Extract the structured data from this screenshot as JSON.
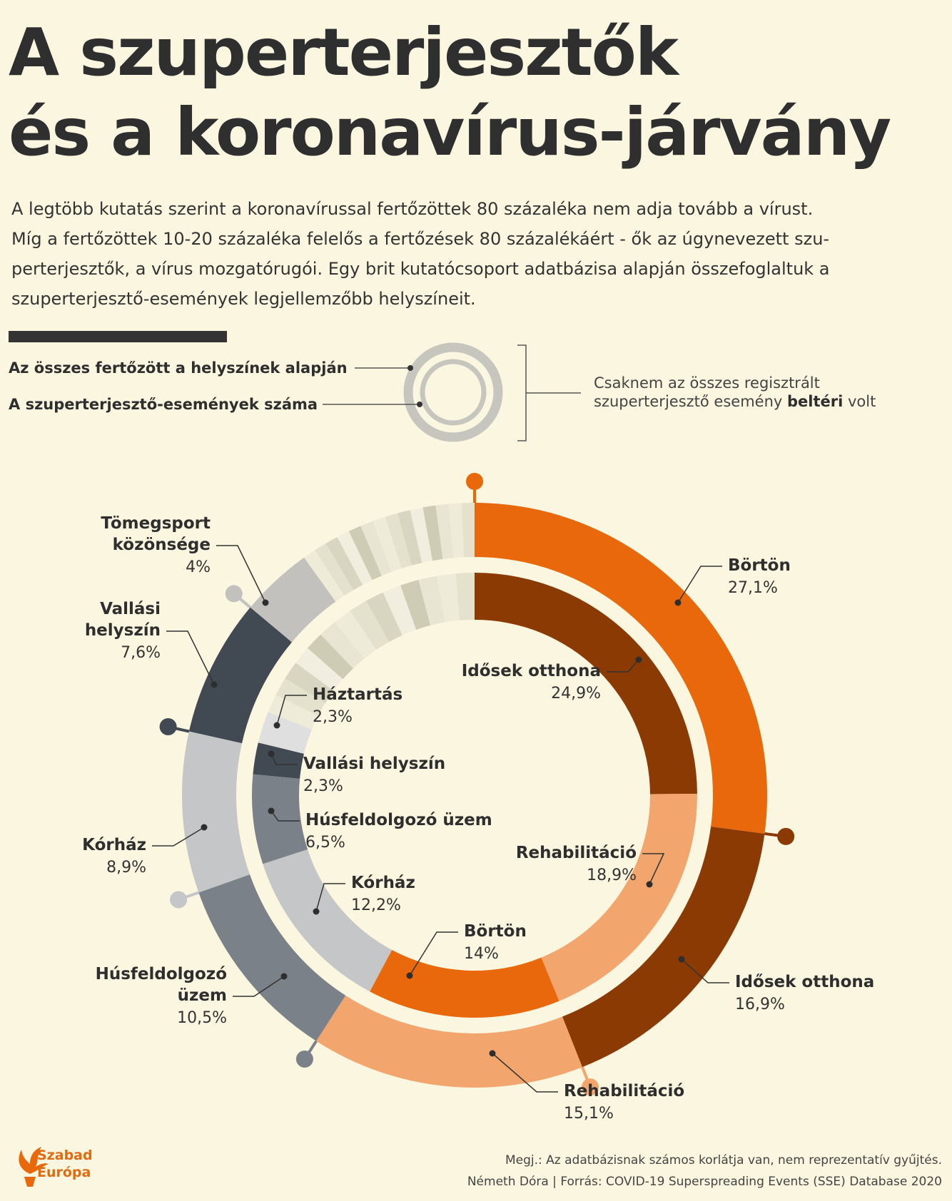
{
  "header": {
    "title_line1": "A szuperterjesztők",
    "title_line2": "és a koronavírus-járvány"
  },
  "intro": {
    "lines": [
      "A legtöbb kutatás szerint a koronavírussal fertőzöttek 80 százaléka nem adja tovább a vírust.",
      "Míg a fertőzöttek 10-20 százaléka felelős a fertőzések 80 százalékáért - ők az úgynevezett szu-",
      "perterjesztők, a vírus mozgatórugói. Egy brit kutatócsoport adatbázisa alapján összefoglaltuk a",
      "szuperterjesztő-események legjellemzőbb helyszíneit."
    ]
  },
  "legend": {
    "outer_label": "Az összes fertőzött a helyszínek alapján",
    "inner_label": "A szuperterjesztő-események száma",
    "note_line1": "Csaknem az összes regisztrált",
    "note_line2_prefix": "szuperterjesztő esemény ",
    "note_line2_bold": "beltéri",
    "note_line2_suffix": " volt"
  },
  "colors": {
    "background": "#fbf6df",
    "orange": "#e8680b",
    "dark_brown": "#8b3a04",
    "light_orange": "#f2a66e",
    "slate_dark": "#414952",
    "slate_mid": "#7a8189",
    "gray_light": "#c5c6c7",
    "gray_very_light": "#dfdfdf",
    "beige_stripes": [
      "#eeebd9",
      "#e4e1cc",
      "#d8d5c0",
      "#f1eee0",
      "#cfccb6",
      "#e8e5d2"
    ]
  },
  "chart_data": [
    {
      "type": "donut",
      "name": "Az összes fertőzött a helyszínek alapján",
      "ring": "outer",
      "segments": [
        {
          "label": "Börtön",
          "value": 27.1,
          "value_label": "27,1%",
          "color": "#e8680b"
        },
        {
          "label": "Idősek otthona",
          "value": 16.9,
          "value_label": "16,9%",
          "color": "#8b3a04"
        },
        {
          "label": "Rehabilitáció",
          "value": 15.1,
          "value_label": "15,1%",
          "color": "#f2a66e"
        },
        {
          "label": "Húsfeldolgozó üzem",
          "value": 10.5,
          "value_label": "10,5%",
          "color": "#7a8189"
        },
        {
          "label": "Kórház",
          "value": 8.9,
          "value_label": "8,9%",
          "color": "#c5c6c7"
        },
        {
          "label": "Vallási helyszín",
          "value": 7.6,
          "value_label": "7,6%",
          "color": "#414952"
        },
        {
          "label": "Tömegsport közönsége",
          "value": 4.0,
          "value_label": "4%",
          "color": "#c2c1bd"
        }
      ]
    },
    {
      "type": "donut",
      "name": "A szuperterjesztő-események száma",
      "ring": "inner",
      "segments": [
        {
          "label": "Idősek otthona",
          "value": 24.9,
          "value_label": "24,9%",
          "color": "#8b3a04"
        },
        {
          "label": "Rehabilitáció",
          "value": 18.9,
          "value_label": "18,9%",
          "color": "#f2a66e"
        },
        {
          "label": "Börtön",
          "value": 14.0,
          "value_label": "14%",
          "color": "#e8680b"
        },
        {
          "label": "Kórház",
          "value": 12.2,
          "value_label": "12,2%",
          "color": "#c5c6c7"
        },
        {
          "label": "Húsfeldolgozó üzem",
          "value": 6.5,
          "value_label": "6,5%",
          "color": "#7a8189"
        },
        {
          "label": "Vallási helyszín",
          "value": 2.3,
          "value_label": "2,3%",
          "color": "#414952"
        },
        {
          "label": "Háztartás",
          "value": 2.3,
          "value_label": "2,3%",
          "color": "#dfdfdf"
        }
      ]
    }
  ],
  "footer": {
    "brand_line1": "Szabad",
    "brand_line2": "Európa",
    "note": "Megj.: Az adatbázisnak számos korlátja van, nem reprezentatív gyűjtés.",
    "credit": "Németh Dóra | Forrás: COVID-19 Superspreading Events (SSE) Database 2020"
  }
}
